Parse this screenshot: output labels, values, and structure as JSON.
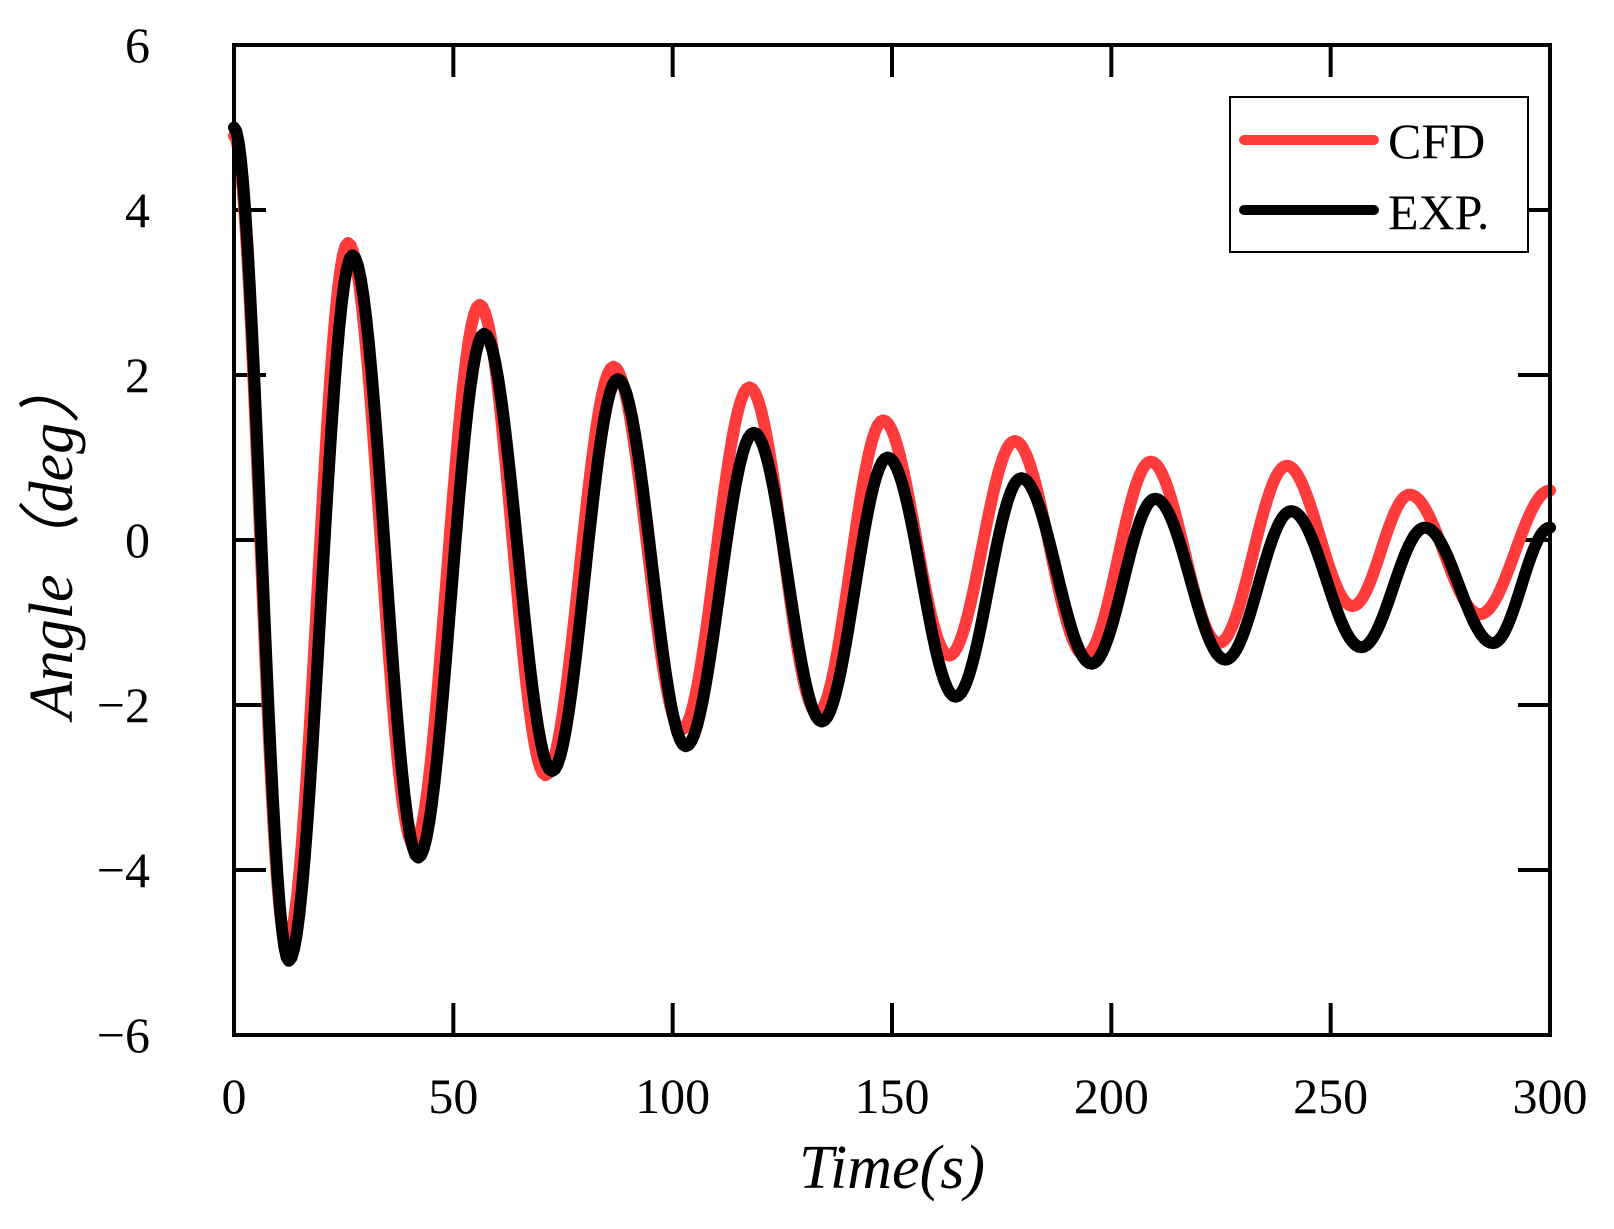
{
  "chart_data": {
    "type": "line",
    "title": "",
    "xlabel": "Time(s)",
    "ylabel": "Angle（deg）",
    "xlim": [
      0,
      300
    ],
    "ylim": [
      -6,
      6
    ],
    "xticks": [
      0,
      50,
      100,
      150,
      200,
      250,
      300
    ],
    "xtick_labels": [
      "0",
      "50",
      "100",
      "150",
      "200",
      "250",
      "300"
    ],
    "yticks": [
      -6,
      -4,
      -2,
      0,
      2,
      4,
      6
    ],
    "ytick_labels": [
      "−6",
      "−4",
      "−2",
      "0",
      "2",
      "4",
      "6"
    ],
    "grid": false,
    "legend_position": "top-right",
    "colors": {
      "CFD": "#ff3b3b",
      "EXP.": "#000000"
    },
    "series": [
      {
        "name": "CFD",
        "points": [
          [
            0,
            4.9
          ],
          [
            12,
            -4.9
          ],
          [
            26,
            3.6
          ],
          [
            41,
            -3.7
          ],
          [
            56,
            2.85
          ],
          [
            71,
            -2.85
          ],
          [
            86.5,
            2.1
          ],
          [
            102,
            -2.3
          ],
          [
            117.5,
            1.85
          ],
          [
            133,
            -2.1
          ],
          [
            148,
            1.45
          ],
          [
            163,
            -1.4
          ],
          [
            178,
            1.2
          ],
          [
            194,
            -1.4
          ],
          [
            209,
            0.95
          ],
          [
            224.5,
            -1.25
          ],
          [
            240,
            0.9
          ],
          [
            255,
            -0.8
          ],
          [
            268,
            0.55
          ],
          [
            284,
            -0.9
          ],
          [
            300,
            0.6
          ]
        ]
      },
      {
        "name": "EXP.",
        "points": [
          [
            0,
            5.0
          ],
          [
            12.5,
            -5.1
          ],
          [
            27,
            3.45
          ],
          [
            42,
            -3.85
          ],
          [
            57,
            2.5
          ],
          [
            72.5,
            -2.8
          ],
          [
            87.5,
            1.95
          ],
          [
            103,
            -2.5
          ],
          [
            118.5,
            1.3
          ],
          [
            134,
            -2.2
          ],
          [
            149,
            1.0
          ],
          [
            164.5,
            -1.9
          ],
          [
            179.5,
            0.75
          ],
          [
            195.5,
            -1.5
          ],
          [
            210,
            0.5
          ],
          [
            226,
            -1.45
          ],
          [
            241,
            0.35
          ],
          [
            257,
            -1.3
          ],
          [
            271.5,
            0.15
          ],
          [
            287,
            -1.25
          ],
          [
            300,
            0.15
          ]
        ]
      }
    ]
  }
}
